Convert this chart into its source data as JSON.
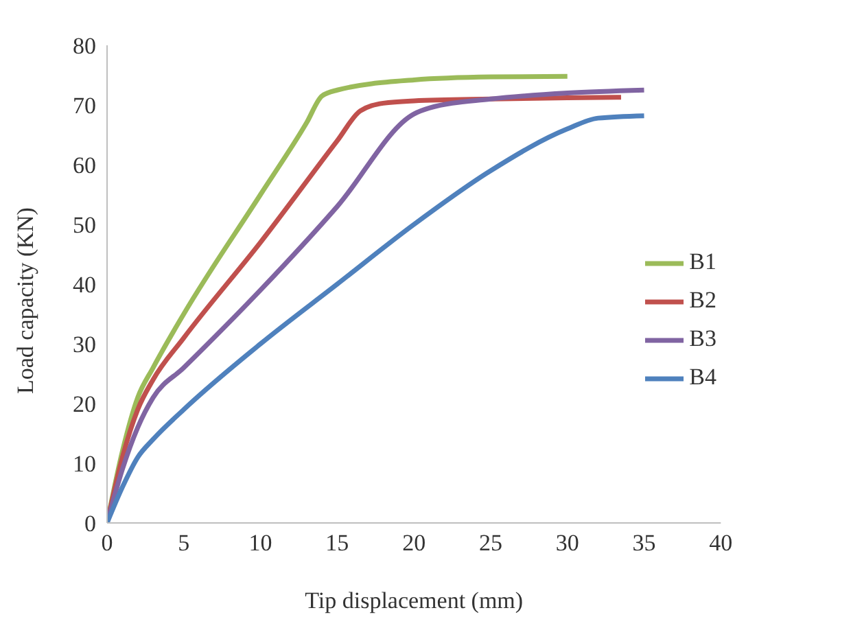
{
  "chart_data": {
    "type": "line",
    "xlabel": "Tip displacement (mm)",
    "ylabel": "Load capacity (KN)",
    "xlim": [
      0,
      40
    ],
    "xticks": [
      0,
      5,
      10,
      15,
      20,
      25,
      30,
      35,
      40
    ],
    "ylim": [
      0,
      80
    ],
    "yticks": [
      0,
      10,
      20,
      30,
      40,
      50,
      60,
      70,
      80
    ],
    "grid": false,
    "legend": "right",
    "marker": "none",
    "line_style": "solid",
    "series": [
      {
        "name": "B1",
        "color": "#9bbb59",
        "x": [
          0,
          1,
          2,
          3,
          5,
          10,
          13,
          14,
          15,
          20,
          25,
          30
        ],
        "values": [
          0,
          12,
          21,
          26,
          35,
          55,
          67,
          71.5,
          72.5,
          74.2,
          74.7,
          74.8
        ]
      },
      {
        "name": "B2",
        "color": "#c0504d",
        "x": [
          0,
          1,
          2,
          3,
          5,
          10,
          15,
          16.5,
          18,
          20,
          25,
          30,
          33.5
        ],
        "values": [
          0,
          11,
          19,
          24,
          31,
          47,
          64,
          69,
          70.3,
          70.7,
          71,
          71.2,
          71.3
        ]
      },
      {
        "name": "B3",
        "color": "#8064a2",
        "x": [
          0,
          1,
          2,
          3,
          5,
          10,
          15,
          20,
          21,
          25,
          30,
          35
        ],
        "values": [
          0,
          9,
          16,
          21,
          26,
          39,
          53,
          68.5,
          69.5,
          71,
          72,
          72.5
        ]
      },
      {
        "name": "B4",
        "color": "#4f81bd",
        "x": [
          0,
          1,
          2,
          3,
          5,
          10,
          15,
          20,
          25,
          30,
          32,
          35
        ],
        "values": [
          0,
          6,
          11,
          14,
          19,
          30,
          40,
          50,
          59,
          66,
          67.8,
          68.2
        ]
      }
    ]
  }
}
